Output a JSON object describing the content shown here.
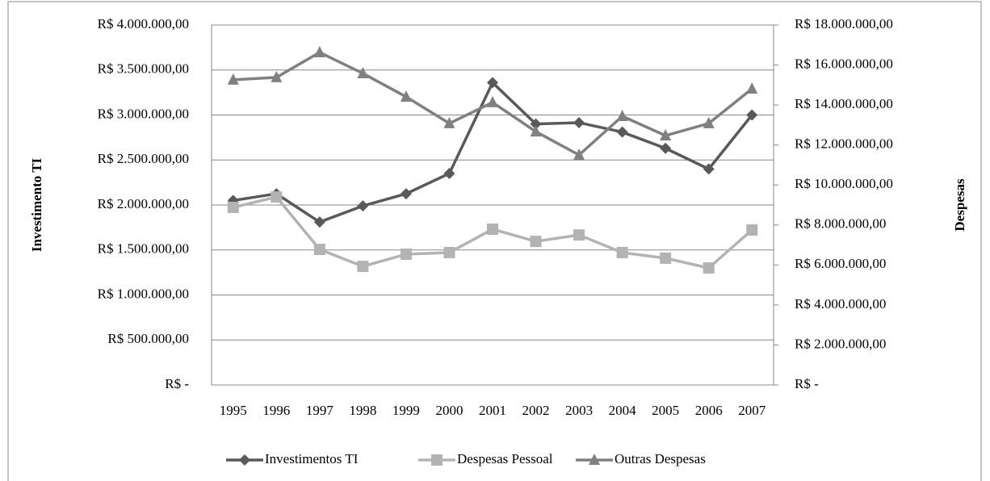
{
  "chart_data": {
    "type": "line",
    "y_label": "Investimento TI",
    "y2_label": "Despesas",
    "categories": [
      "1995",
      "1996",
      "1997",
      "1998",
      "1999",
      "2000",
      "2001",
      "2002",
      "2003",
      "2004",
      "2005",
      "2006",
      "2007"
    ],
    "series": [
      {
        "name": "Investimentos TI",
        "color": "#595959",
        "marker": "diamond",
        "axis": "y",
        "values": [
          2050000,
          2125000,
          1810000,
          1990000,
          2125000,
          2350000,
          3360000,
          2900000,
          2915000,
          2810000,
          2630000,
          2400000,
          3000000
        ]
      },
      {
        "name": "Despesas Pessoal",
        "color": "#b3b3b3",
        "marker": "square",
        "axis": "y2",
        "values": [
          8880000,
          9400000,
          6780000,
          5930000,
          6540000,
          6620000,
          7790000,
          7180000,
          7500000,
          6620000,
          6340000,
          5850000,
          7750000
        ]
      },
      {
        "name": "Outras Despesas",
        "color": "#808080",
        "marker": "triangle",
        "axis": "y2",
        "values": [
          15260000,
          15380000,
          16630000,
          15580000,
          14410000,
          13080000,
          14130000,
          12670000,
          11500000,
          13440000,
          12470000,
          13080000,
          14810000
        ]
      }
    ],
    "ylim": [
      0,
      4000000
    ],
    "yticks": [
      {
        "value": 0,
        "label": "R$ -"
      },
      {
        "value": 500000,
        "label": "R$ 500.000,00"
      },
      {
        "value": 1000000,
        "label": "R$ 1.000.000,00"
      },
      {
        "value": 1500000,
        "label": "R$ 1.500.000,00"
      },
      {
        "value": 2000000,
        "label": "R$ 2.000.000,00"
      },
      {
        "value": 2500000,
        "label": "R$ 2.500.000,00"
      },
      {
        "value": 3000000,
        "label": "R$ 3.000.000,00"
      },
      {
        "value": 3500000,
        "label": "R$ 3.500.000,00"
      },
      {
        "value": 4000000,
        "label": "R$ 4.000.000,00"
      }
    ],
    "y2lim": [
      0,
      18000000
    ],
    "y2ticks": [
      {
        "value": 0,
        "label": "R$ -"
      },
      {
        "value": 2000000,
        "label": "R$ 2.000.000,00"
      },
      {
        "value": 4000000,
        "label": "R$ 4.000.000,00"
      },
      {
        "value": 6000000,
        "label": "R$ 6.000.000,00"
      },
      {
        "value": 8000000,
        "label": "R$ 8.000.000,00"
      },
      {
        "value": 10000000,
        "label": "R$ 10.000.000,00"
      },
      {
        "value": 12000000,
        "label": "R$ 12.000.000,00"
      },
      {
        "value": 14000000,
        "label": "R$ 14.000.000,00"
      },
      {
        "value": 16000000,
        "label": "R$ 16.000.000,00"
      },
      {
        "value": 18000000,
        "label": "R$ 18.000.000,00"
      }
    ],
    "grid": true,
    "legend": "bottom"
  }
}
